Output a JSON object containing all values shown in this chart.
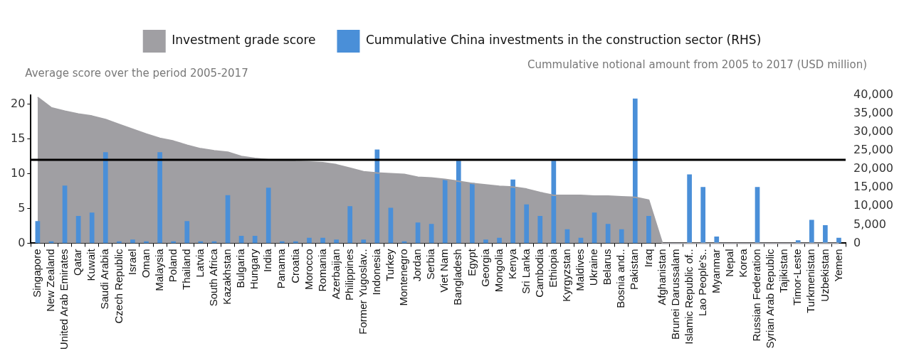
{
  "chart_data": {
    "type": "bar",
    "ylabel": "Average score over the period 2005-2017",
    "y2label": "Cummulative notional amount from 2005 to 2017 (USD million)",
    "categories": [
      "Singapore",
      "New Zealand",
      "United Arab Emirates",
      "Qatar",
      "Kuwait",
      "Saudi Arabia",
      "Czech Republic",
      "Israel",
      "Oman",
      "Malaysia",
      "Poland",
      "Thailand",
      "Latvia",
      "South Africa",
      "Kazakhstan",
      "Bulgaria",
      "Hungary",
      "India",
      "Panama",
      "Croatia",
      "Morocco",
      "Romania",
      "Azerbaijan",
      "Philippines",
      "Former Yugoslav..",
      "Indonesia",
      "Turkey",
      "Montenegro",
      "Jordan",
      "Serbia",
      "Viet Nam",
      "Bangladesh",
      "Egypt",
      "Georgia",
      "Mongolia",
      "Kenya",
      "Sri Lanka",
      "Cambodia",
      "Ethiopia",
      "Kyrgyzstan",
      "Maldives",
      "Ukraine",
      "Belarus",
      "Bosnia and..",
      "Pakistan",
      "Iraq",
      "Afghanistan",
      "Brunei Darussalam",
      "Islamic Republic of..",
      "Lao People's..",
      "Myanmar",
      "Nepal",
      "Korea",
      "Russian Federation",
      "Syrian Arab Republic",
      "Tajikistan",
      "Timor-Leste",
      "Turkmenistan",
      "Uzbekistan",
      "Yemen"
    ],
    "series": [
      {
        "name": "Investment grade score",
        "type": "area",
        "color": "#a09fa3",
        "values": [
          21,
          19.5,
          19,
          18.6,
          18.3,
          17.8,
          17.1,
          16.4,
          15.7,
          15.1,
          14.7,
          14.1,
          13.6,
          13.3,
          13.1,
          12.5,
          12.2,
          12,
          12,
          11.8,
          11.7,
          11.6,
          11.3,
          10.8,
          10.3,
          10.1,
          10,
          9.9,
          9.5,
          9.4,
          9.2,
          8.9,
          8.6,
          8.4,
          8.2,
          8.1,
          7.8,
          7.3,
          6.9,
          6.9,
          6.9,
          6.8,
          6.8,
          6.7,
          6.6,
          6.2,
          0,
          0,
          0,
          0,
          0,
          0,
          0,
          0,
          0,
          0,
          0,
          0,
          0,
          0
        ]
      },
      {
        "name": "Cummulative China investments in the construction sector (RHS)",
        "axis": "y2",
        "color": "#4a8fd8",
        "values": [
          6000,
          500,
          15600,
          7400,
          8300,
          24600,
          500,
          1000,
          500,
          24600,
          500,
          6000,
          500,
          500,
          13000,
          2000,
          2000,
          15000,
          500,
          500,
          1500,
          1500,
          1000,
          10000,
          1000,
          25300,
          9600,
          500,
          5600,
          5200,
          17200,
          22300,
          16300,
          1000,
          1500,
          17200,
          10500,
          7400,
          22300,
          3800,
          1500,
          8300,
          5200,
          3800,
          39100,
          7400,
          0,
          0,
          18600,
          15200,
          1800,
          null,
          null,
          15200,
          null,
          null,
          800,
          6300,
          4900,
          1500
        ]
      }
    ],
    "ylim": [
      0,
      21.3
    ],
    "yticks": [
      0,
      5,
      10,
      15,
      20
    ],
    "y2lim": [
      0,
      40000
    ],
    "y2ticks": [
      0,
      {
        "value": 5000,
        "label": "5,000"
      },
      {
        "value": 10000,
        "label": "10,000"
      },
      {
        "value": 15000,
        "label": "15,000"
      },
      {
        "value": 20000,
        "label": "20,000"
      },
      {
        "value": 25000,
        "label": "25,000"
      },
      {
        "value": 30000,
        "label": "30,000"
      },
      {
        "value": 35000,
        "label": "35,000"
      },
      {
        "value": 40000,
        "label": "40,000"
      }
    ],
    "ref_lines": [
      {
        "axis": "y",
        "value": 12,
        "color": "#000000"
      }
    ],
    "legend": "top",
    "grid": false
  }
}
